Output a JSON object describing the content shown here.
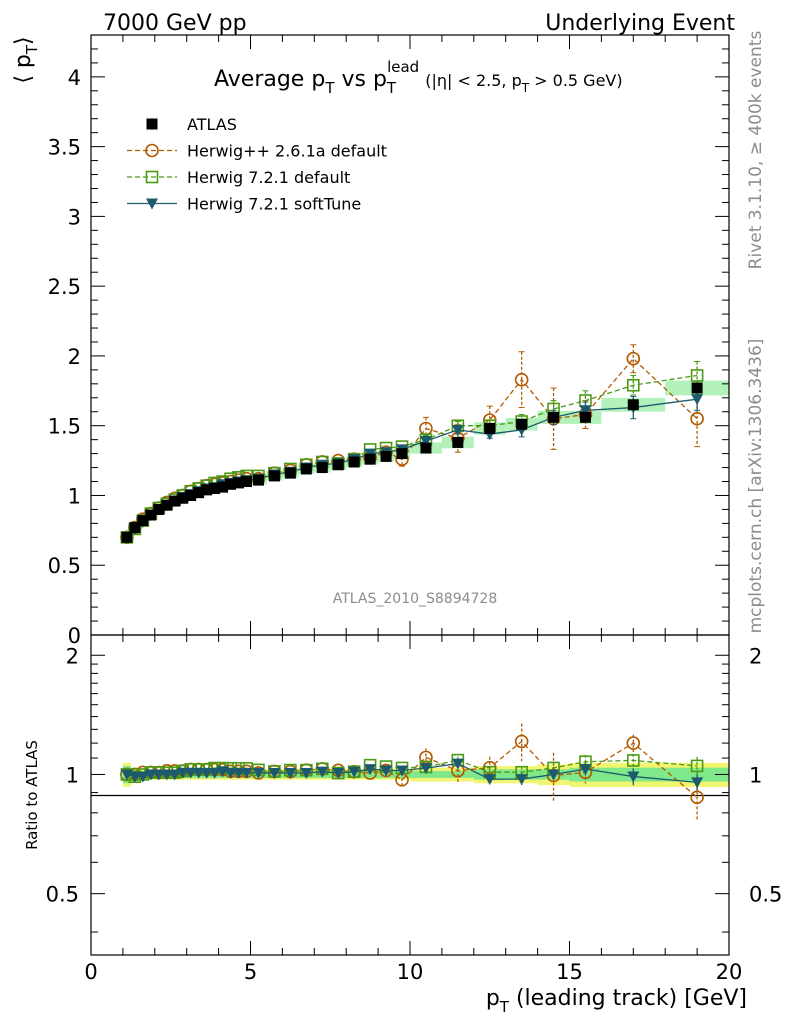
{
  "header": {
    "left": "7000 GeV pp",
    "right": "Underlying Event"
  },
  "side_labels": {
    "upper": "Rivet 3.1.10, ≥ 400k events",
    "lower": "mcplots.cern.ch [arXiv:1306.3436]"
  },
  "chart_data": {
    "type": "line",
    "title": {
      "main": "Average p",
      "main_sub": "T",
      "vs": " vs p",
      "vs_sub": "T",
      "vs_sup": "lead",
      "cut_a": "(|η| < 2.5, p",
      "cut_sub": "T",
      "cut_b": " > 0.5 GeV)"
    },
    "ylabel": {
      "left": "⟨ p",
      "sub": "T",
      "right": "⟩"
    },
    "xlabel": {
      "pre": "p",
      "sub": "T",
      "post": " (leading track) [GeV]"
    },
    "ratio_ylabel": "Ratio to ATLAS",
    "analysis_tag": "ATLAS_2010_S8894728",
    "xlim": [
      0,
      20
    ],
    "ylim": [
      0,
      4.3
    ],
    "ratio_ylim": [
      0.35,
      2.25
    ],
    "x_ticks": [
      "0",
      "5",
      "10",
      "15",
      "20"
    ],
    "y_ticks": [
      "0",
      "0.5",
      "1",
      "1.5",
      "2",
      "2.5",
      "3",
      "3.5",
      "4"
    ],
    "ratio_ticks": [
      "0.5",
      "1",
      "2"
    ],
    "x": [
      1.125,
      1.375,
      1.625,
      1.875,
      2.125,
      2.375,
      2.625,
      2.875,
      3.125,
      3.375,
      3.625,
      3.875,
      4.125,
      4.375,
      4.625,
      4.875,
      5.25,
      5.75,
      6.25,
      6.75,
      7.25,
      7.75,
      8.25,
      8.75,
      9.25,
      9.75,
      10.5,
      11.5,
      12.5,
      13.5,
      14.5,
      15.5,
      17.0,
      19.0
    ],
    "series": [
      {
        "name": "ATLAS",
        "color": "#000000",
        "values": [
          0.7,
          0.77,
          0.82,
          0.86,
          0.9,
          0.93,
          0.96,
          0.98,
          1.0,
          1.02,
          1.04,
          1.05,
          1.06,
          1.08,
          1.09,
          1.1,
          1.11,
          1.14,
          1.16,
          1.19,
          1.2,
          1.22,
          1.24,
          1.26,
          1.28,
          1.3,
          1.34,
          1.38,
          1.48,
          1.51,
          1.56,
          1.56,
          1.65,
          1.77
        ]
      },
      {
        "name": "Herwig++ 2.6.1a default",
        "color": "#b35a00",
        "values": [
          0.7,
          0.77,
          0.83,
          0.87,
          0.91,
          0.95,
          0.98,
          1.0,
          1.03,
          1.05,
          1.07,
          1.08,
          1.09,
          1.1,
          1.11,
          1.12,
          1.12,
          1.16,
          1.18,
          1.22,
          1.24,
          1.25,
          1.26,
          1.27,
          1.31,
          1.26,
          1.48,
          1.41,
          1.54,
          1.83,
          1.55,
          1.58,
          1.98,
          1.55
        ],
        "errors": [
          0,
          0,
          0,
          0,
          0,
          0,
          0,
          0,
          0,
          0,
          0,
          0,
          0,
          0,
          0,
          0,
          0,
          0,
          0,
          0,
          0,
          0,
          0,
          0,
          0.03,
          0.05,
          0.08,
          0.1,
          0.1,
          0.2,
          0.22,
          0.1,
          0.1,
          0.2
        ]
      },
      {
        "name": "Herwig 7.2.1 default",
        "color": "#4b9a14",
        "values": [
          0.7,
          0.76,
          0.82,
          0.87,
          0.91,
          0.94,
          0.97,
          1.0,
          1.03,
          1.05,
          1.07,
          1.09,
          1.1,
          1.12,
          1.13,
          1.14,
          1.14,
          1.16,
          1.19,
          1.22,
          1.24,
          1.23,
          1.26,
          1.33,
          1.34,
          1.35,
          1.4,
          1.5,
          1.5,
          1.53,
          1.62,
          1.68,
          1.79,
          1.86
        ],
        "errors": [
          0,
          0,
          0,
          0,
          0,
          0,
          0,
          0,
          0,
          0,
          0,
          0,
          0,
          0,
          0,
          0,
          0,
          0,
          0,
          0,
          0,
          0,
          0,
          0,
          0,
          0,
          0.03,
          0.03,
          0.04,
          0.05,
          0.06,
          0.07,
          0.07,
          0.1
        ]
      },
      {
        "name": "Herwig 7.2.1 softTune",
        "color": "#1e5a6e",
        "values": [
          0.7,
          0.76,
          0.81,
          0.86,
          0.9,
          0.93,
          0.96,
          0.99,
          1.01,
          1.03,
          1.05,
          1.06,
          1.08,
          1.09,
          1.1,
          1.11,
          1.12,
          1.15,
          1.17,
          1.2,
          1.22,
          1.23,
          1.26,
          1.3,
          1.31,
          1.33,
          1.39,
          1.47,
          1.44,
          1.47,
          1.56,
          1.61,
          1.63,
          1.69
        ],
        "errors": [
          0,
          0,
          0,
          0,
          0,
          0,
          0,
          0,
          0,
          0,
          0,
          0,
          0,
          0,
          0,
          0,
          0,
          0,
          0,
          0,
          0,
          0,
          0,
          0,
          0,
          0,
          0.02,
          0.03,
          0.03,
          0.05,
          0.05,
          0.06,
          0.08,
          0.08
        ]
      }
    ],
    "ratio_band": {
      "x_edges": [
        1,
        1.25,
        1.5,
        2,
        3,
        4,
        5,
        6,
        7,
        8,
        9,
        10,
        11,
        12,
        13,
        14,
        15,
        16,
        18,
        20
      ],
      "inner": [
        0.05,
        0.03,
        0.02,
        0.02,
        0.02,
        0.02,
        0.02,
        0.02,
        0.02,
        0.02,
        0.02,
        0.02,
        0.02,
        0.03,
        0.03,
        0.03,
        0.04,
        0.04,
        0.04
      ],
      "outer": [
        0.07,
        0.04,
        0.03,
        0.03,
        0.03,
        0.03,
        0.03,
        0.03,
        0.03,
        0.03,
        0.03,
        0.04,
        0.04,
        0.05,
        0.05,
        0.06,
        0.07,
        0.07,
        0.07
      ],
      "inner_color": "#7ee88a",
      "outer_color": "#f2f570"
    }
  }
}
